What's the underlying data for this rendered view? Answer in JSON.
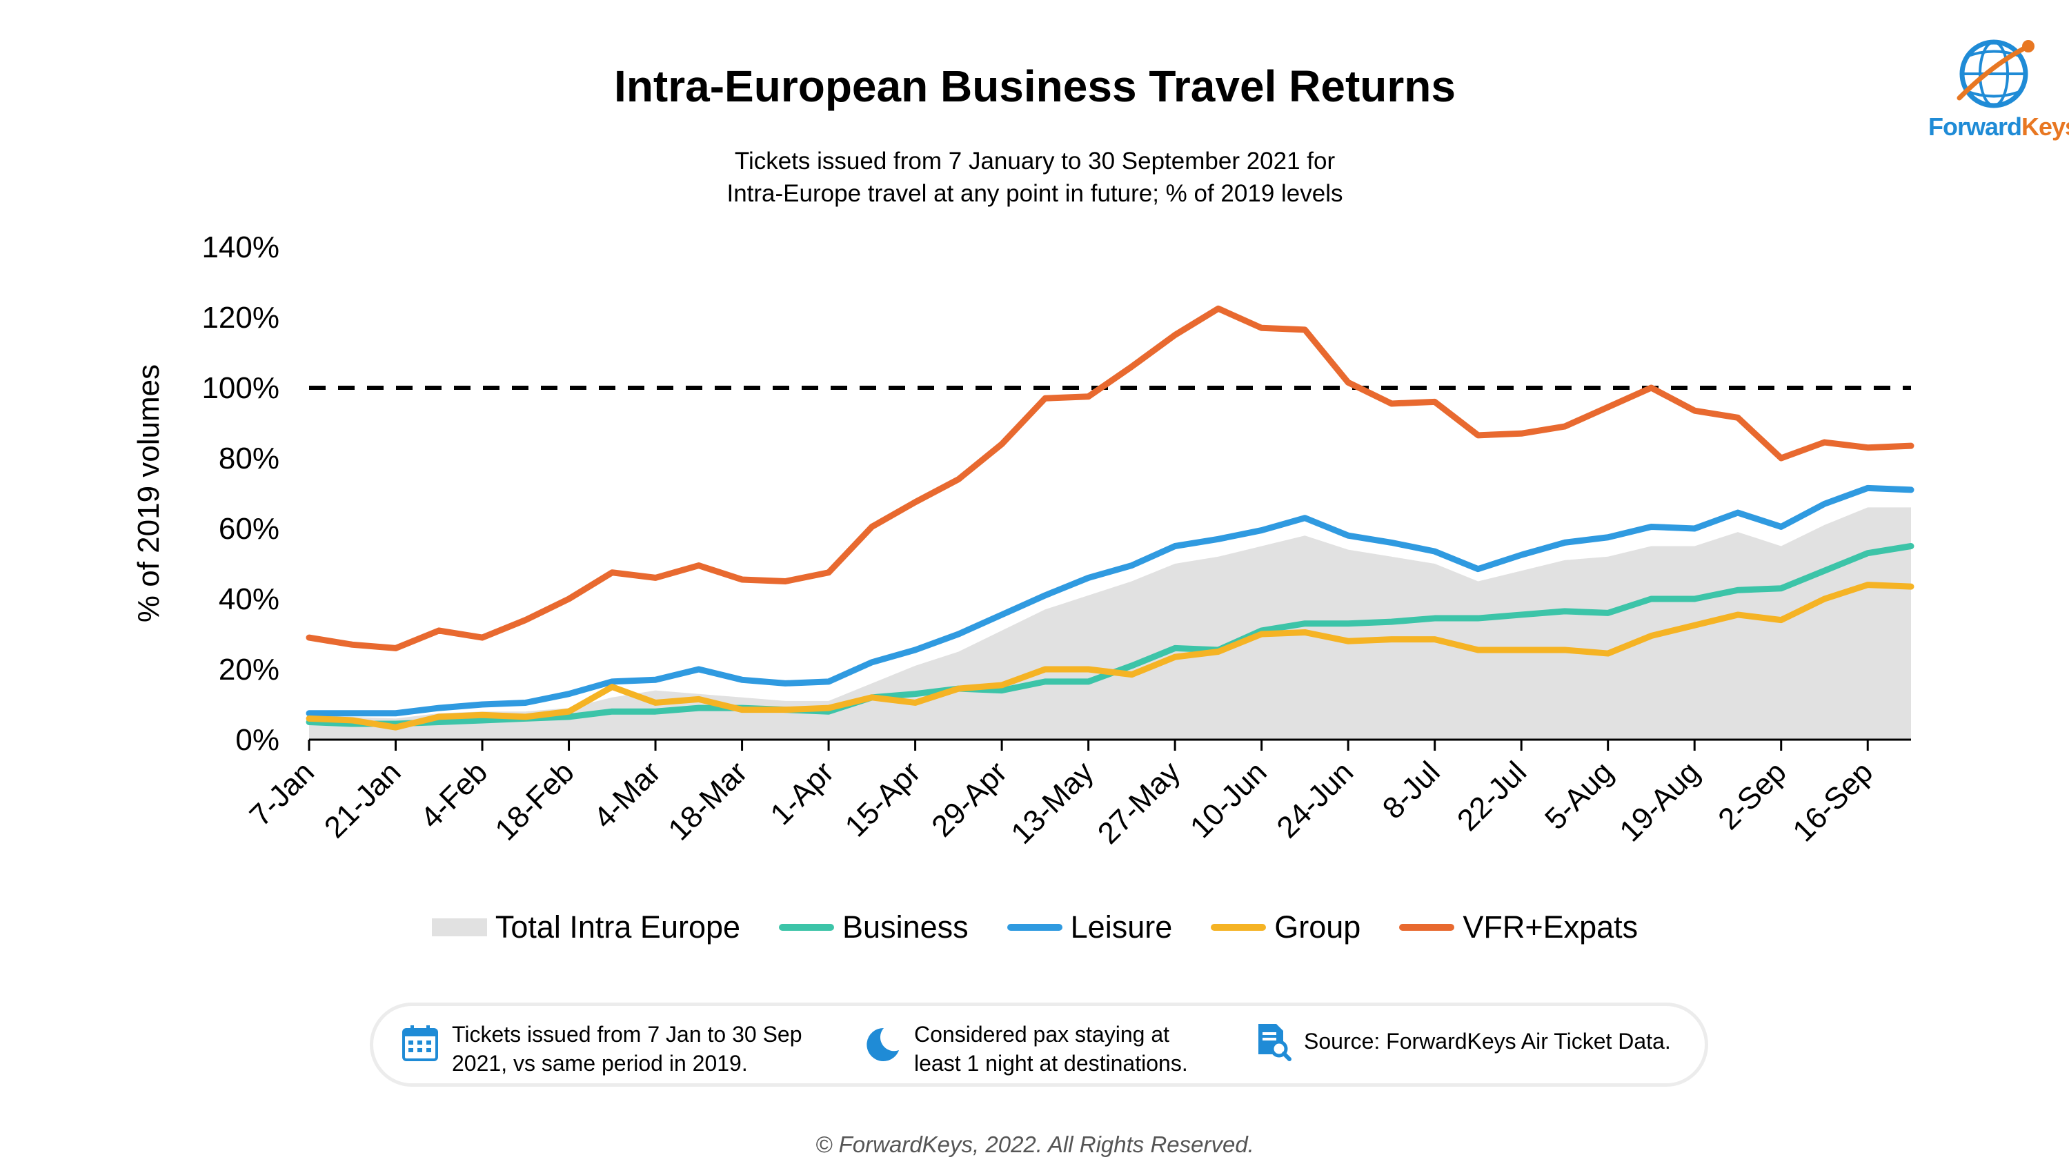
{
  "title": "Intra-European Business Travel Returns",
  "subtitle_line1": "Tickets issued from 7 January to 30 September 2021 for",
  "subtitle_line2": "Intra-Europe travel at any point in future; % of 2019 levels",
  "logo_text_a": "Forward",
  "logo_text_b": "Keys",
  "chart_data": {
    "type": "line",
    "ylabel": "% of 2019 volumes",
    "ylim": [
      0,
      140
    ],
    "yticks": [
      "0%",
      "20%",
      "40%",
      "60%",
      "80%",
      "100%",
      "120%",
      "140%"
    ],
    "reference_line": 100,
    "x_tick_labels": [
      "7-Jan",
      "21-Jan",
      "4-Feb",
      "18-Feb",
      "4-Mar",
      "18-Mar",
      "1-Apr",
      "15-Apr",
      "29-Apr",
      "13-May",
      "27-May",
      "10-Jun",
      "24-Jun",
      "8-Jul",
      "22-Jul",
      "5-Aug",
      "19-Aug",
      "2-Sep",
      "16-Sep"
    ],
    "x": [
      "7-Jan",
      "14-Jan",
      "21-Jan",
      "28-Jan",
      "4-Feb",
      "11-Feb",
      "18-Feb",
      "25-Feb",
      "4-Mar",
      "11-Mar",
      "18-Mar",
      "25-Mar",
      "1-Apr",
      "8-Apr",
      "15-Apr",
      "22-Apr",
      "29-Apr",
      "6-May",
      "13-May",
      "20-May",
      "27-May",
      "3-Jun",
      "10-Jun",
      "17-Jun",
      "24-Jun",
      "1-Jul",
      "8-Jul",
      "15-Jul",
      "22-Jul",
      "29-Jul",
      "5-Aug",
      "12-Aug",
      "19-Aug",
      "26-Aug",
      "2-Sep",
      "9-Sep",
      "16-Sep",
      "23-Sep"
    ],
    "series": [
      {
        "name": "Total Intra Europe",
        "kind": "area",
        "color": "#e1e1e1",
        "values": [
          7,
          6.5,
          6,
          7.5,
          8,
          8,
          9,
          12,
          14,
          13,
          12,
          11,
          11,
          16,
          21,
          25,
          31,
          37,
          41,
          45,
          50,
          52,
          55,
          58,
          54,
          52,
          50,
          45,
          48,
          51,
          52,
          55,
          55,
          59,
          55,
          61,
          66,
          66
        ]
      },
      {
        "name": "Business",
        "kind": "line",
        "color": "#3cc4a8",
        "values": [
          5,
          4.5,
          4.5,
          5,
          5.5,
          6,
          6.5,
          8,
          8,
          9,
          9,
          8.5,
          8,
          12,
          13,
          14.5,
          14,
          16.5,
          16.5,
          21,
          26,
          25.5,
          31,
          33,
          33,
          33.5,
          34.5,
          34.5,
          35.5,
          36.5,
          36,
          40,
          40,
          42.5,
          43,
          48,
          53,
          55
        ]
      },
      {
        "name": "Leisure",
        "kind": "line",
        "color": "#2f9ae0",
        "values": [
          7.5,
          7.5,
          7.5,
          9,
          10,
          10.5,
          13,
          16.5,
          17,
          20,
          17,
          16,
          16.5,
          22,
          25.5,
          30,
          35.5,
          41,
          46,
          49.5,
          55,
          57,
          59.5,
          63,
          58,
          56,
          53.5,
          48.5,
          52.5,
          56,
          57.5,
          60.5,
          60,
          64.5,
          60.5,
          67,
          71.5,
          71
        ]
      },
      {
        "name": "Group",
        "kind": "line",
        "color": "#f5b324",
        "values": [
          6,
          5.5,
          3.5,
          6.5,
          7,
          6.5,
          8,
          15,
          10.5,
          11.5,
          8.5,
          8.5,
          9,
          12,
          10.5,
          14.5,
          15.5,
          20,
          20,
          18.5,
          23.5,
          25,
          30,
          30.5,
          28,
          28.5,
          28.5,
          25.5,
          25.5,
          25.5,
          24.5,
          29.5,
          32.5,
          35.5,
          34,
          40,
          44,
          43.5
        ]
      },
      {
        "name": "VFR+Expats",
        "kind": "line",
        "color": "#e8692f",
        "values": [
          29,
          27,
          26,
          31,
          29,
          34,
          40,
          47.5,
          46,
          49.5,
          45.5,
          45,
          47.5,
          60.5,
          67.5,
          74,
          84,
          97,
          97.5,
          106,
          115,
          122.5,
          117,
          116.5,
          101.5,
          95.5,
          96,
          86.5,
          87,
          89,
          94.5,
          100,
          93.5,
          91.5,
          80,
          84.5,
          83,
          83.5
        ]
      }
    ],
    "legend_position": "bottom"
  },
  "info": {
    "item1_line1": "Tickets issued from 7 Jan to 30 Sep",
    "item1_line2": "2021, vs same period in 2019.",
    "item2_line1": "Considered pax staying at",
    "item2_line2": "least 1 night at destinations.",
    "item3": "Source: ForwardKeys Air Ticket Data."
  },
  "footer": "© ForwardKeys, 2022. All Rights Reserved.",
  "icons": {
    "calendar": "calendar-icon",
    "moon": "moon-stars-icon",
    "document": "document-search-icon",
    "globe": "globe-logo-icon"
  }
}
